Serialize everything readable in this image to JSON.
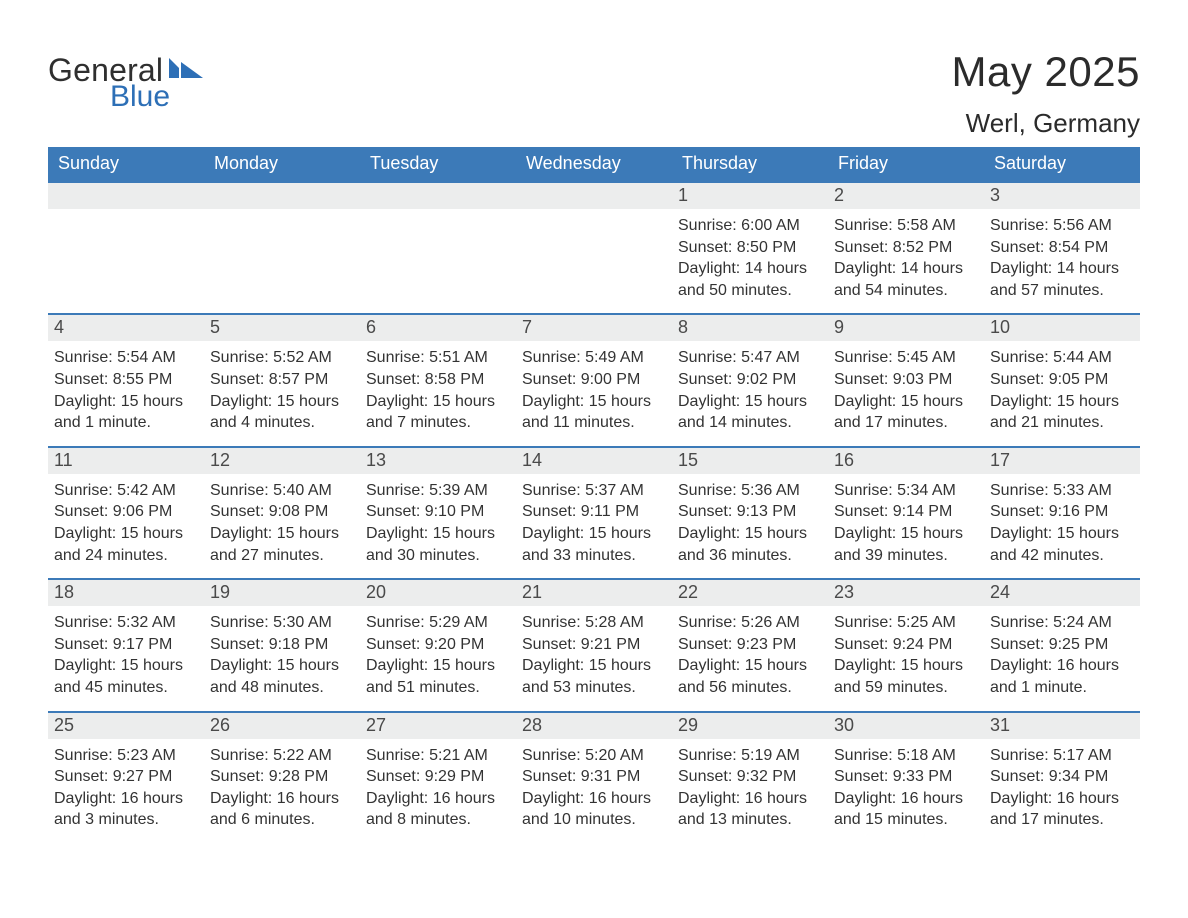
{
  "brand": {
    "general": "General",
    "blue": "Blue"
  },
  "title": "May 2025",
  "location": "Werl, Germany",
  "colors": {
    "brand_blue": "#2d6fb6",
    "header_bg": "#3c7ab8",
    "header_text": "#ffffff",
    "daynum_bg": "#eceded",
    "daynum_text": "#4a4a4a",
    "body_text": "#333333",
    "page_bg": "#ffffff",
    "row_divider": "#3c7ab8"
  },
  "dow": [
    "Sunday",
    "Monday",
    "Tuesday",
    "Wednesday",
    "Thursday",
    "Friday",
    "Saturday"
  ],
  "weeks": [
    [
      null,
      null,
      null,
      null,
      {
        "n": "1",
        "sunrise": "Sunrise: 6:00 AM",
        "sunset": "Sunset: 8:50 PM",
        "dl1": "Daylight: 14 hours",
        "dl2": "and 50 minutes."
      },
      {
        "n": "2",
        "sunrise": "Sunrise: 5:58 AM",
        "sunset": "Sunset: 8:52 PM",
        "dl1": "Daylight: 14 hours",
        "dl2": "and 54 minutes."
      },
      {
        "n": "3",
        "sunrise": "Sunrise: 5:56 AM",
        "sunset": "Sunset: 8:54 PM",
        "dl1": "Daylight: 14 hours",
        "dl2": "and 57 minutes."
      }
    ],
    [
      {
        "n": "4",
        "sunrise": "Sunrise: 5:54 AM",
        "sunset": "Sunset: 8:55 PM",
        "dl1": "Daylight: 15 hours",
        "dl2": "and 1 minute."
      },
      {
        "n": "5",
        "sunrise": "Sunrise: 5:52 AM",
        "sunset": "Sunset: 8:57 PM",
        "dl1": "Daylight: 15 hours",
        "dl2": "and 4 minutes."
      },
      {
        "n": "6",
        "sunrise": "Sunrise: 5:51 AM",
        "sunset": "Sunset: 8:58 PM",
        "dl1": "Daylight: 15 hours",
        "dl2": "and 7 minutes."
      },
      {
        "n": "7",
        "sunrise": "Sunrise: 5:49 AM",
        "sunset": "Sunset: 9:00 PM",
        "dl1": "Daylight: 15 hours",
        "dl2": "and 11 minutes."
      },
      {
        "n": "8",
        "sunrise": "Sunrise: 5:47 AM",
        "sunset": "Sunset: 9:02 PM",
        "dl1": "Daylight: 15 hours",
        "dl2": "and 14 minutes."
      },
      {
        "n": "9",
        "sunrise": "Sunrise: 5:45 AM",
        "sunset": "Sunset: 9:03 PM",
        "dl1": "Daylight: 15 hours",
        "dl2": "and 17 minutes."
      },
      {
        "n": "10",
        "sunrise": "Sunrise: 5:44 AM",
        "sunset": "Sunset: 9:05 PM",
        "dl1": "Daylight: 15 hours",
        "dl2": "and 21 minutes."
      }
    ],
    [
      {
        "n": "11",
        "sunrise": "Sunrise: 5:42 AM",
        "sunset": "Sunset: 9:06 PM",
        "dl1": "Daylight: 15 hours",
        "dl2": "and 24 minutes."
      },
      {
        "n": "12",
        "sunrise": "Sunrise: 5:40 AM",
        "sunset": "Sunset: 9:08 PM",
        "dl1": "Daylight: 15 hours",
        "dl2": "and 27 minutes."
      },
      {
        "n": "13",
        "sunrise": "Sunrise: 5:39 AM",
        "sunset": "Sunset: 9:10 PM",
        "dl1": "Daylight: 15 hours",
        "dl2": "and 30 minutes."
      },
      {
        "n": "14",
        "sunrise": "Sunrise: 5:37 AM",
        "sunset": "Sunset: 9:11 PM",
        "dl1": "Daylight: 15 hours",
        "dl2": "and 33 minutes."
      },
      {
        "n": "15",
        "sunrise": "Sunrise: 5:36 AM",
        "sunset": "Sunset: 9:13 PM",
        "dl1": "Daylight: 15 hours",
        "dl2": "and 36 minutes."
      },
      {
        "n": "16",
        "sunrise": "Sunrise: 5:34 AM",
        "sunset": "Sunset: 9:14 PM",
        "dl1": "Daylight: 15 hours",
        "dl2": "and 39 minutes."
      },
      {
        "n": "17",
        "sunrise": "Sunrise: 5:33 AM",
        "sunset": "Sunset: 9:16 PM",
        "dl1": "Daylight: 15 hours",
        "dl2": "and 42 minutes."
      }
    ],
    [
      {
        "n": "18",
        "sunrise": "Sunrise: 5:32 AM",
        "sunset": "Sunset: 9:17 PM",
        "dl1": "Daylight: 15 hours",
        "dl2": "and 45 minutes."
      },
      {
        "n": "19",
        "sunrise": "Sunrise: 5:30 AM",
        "sunset": "Sunset: 9:18 PM",
        "dl1": "Daylight: 15 hours",
        "dl2": "and 48 minutes."
      },
      {
        "n": "20",
        "sunrise": "Sunrise: 5:29 AM",
        "sunset": "Sunset: 9:20 PM",
        "dl1": "Daylight: 15 hours",
        "dl2": "and 51 minutes."
      },
      {
        "n": "21",
        "sunrise": "Sunrise: 5:28 AM",
        "sunset": "Sunset: 9:21 PM",
        "dl1": "Daylight: 15 hours",
        "dl2": "and 53 minutes."
      },
      {
        "n": "22",
        "sunrise": "Sunrise: 5:26 AM",
        "sunset": "Sunset: 9:23 PM",
        "dl1": "Daylight: 15 hours",
        "dl2": "and 56 minutes."
      },
      {
        "n": "23",
        "sunrise": "Sunrise: 5:25 AM",
        "sunset": "Sunset: 9:24 PM",
        "dl1": "Daylight: 15 hours",
        "dl2": "and 59 minutes."
      },
      {
        "n": "24",
        "sunrise": "Sunrise: 5:24 AM",
        "sunset": "Sunset: 9:25 PM",
        "dl1": "Daylight: 16 hours",
        "dl2": "and 1 minute."
      }
    ],
    [
      {
        "n": "25",
        "sunrise": "Sunrise: 5:23 AM",
        "sunset": "Sunset: 9:27 PM",
        "dl1": "Daylight: 16 hours",
        "dl2": "and 3 minutes."
      },
      {
        "n": "26",
        "sunrise": "Sunrise: 5:22 AM",
        "sunset": "Sunset: 9:28 PM",
        "dl1": "Daylight: 16 hours",
        "dl2": "and 6 minutes."
      },
      {
        "n": "27",
        "sunrise": "Sunrise: 5:21 AM",
        "sunset": "Sunset: 9:29 PM",
        "dl1": "Daylight: 16 hours",
        "dl2": "and 8 minutes."
      },
      {
        "n": "28",
        "sunrise": "Sunrise: 5:20 AM",
        "sunset": "Sunset: 9:31 PM",
        "dl1": "Daylight: 16 hours",
        "dl2": "and 10 minutes."
      },
      {
        "n": "29",
        "sunrise": "Sunrise: 5:19 AM",
        "sunset": "Sunset: 9:32 PM",
        "dl1": "Daylight: 16 hours",
        "dl2": "and 13 minutes."
      },
      {
        "n": "30",
        "sunrise": "Sunrise: 5:18 AM",
        "sunset": "Sunset: 9:33 PM",
        "dl1": "Daylight: 16 hours",
        "dl2": "and 15 minutes."
      },
      {
        "n": "31",
        "sunrise": "Sunrise: 5:17 AM",
        "sunset": "Sunset: 9:34 PM",
        "dl1": "Daylight: 16 hours",
        "dl2": "and 17 minutes."
      }
    ]
  ]
}
